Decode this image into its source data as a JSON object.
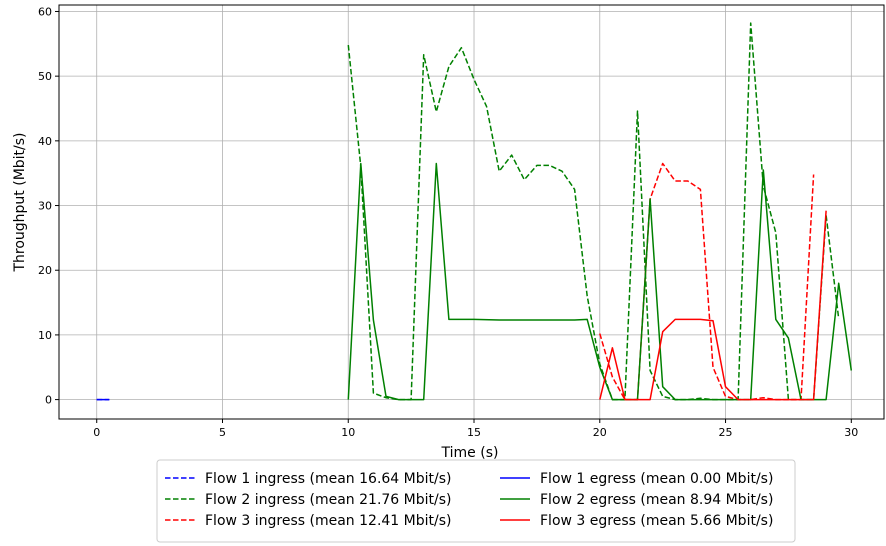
{
  "chart_data": {
    "type": "line",
    "xlabel": "Time (s)",
    "ylabel": "Throughput (Mbit/s)",
    "xlim": [
      -1.5,
      31.3
    ],
    "ylim": [
      -3,
      61
    ],
    "xticks": [
      0,
      5,
      10,
      15,
      20,
      25,
      30
    ],
    "yticks": [
      0,
      10,
      20,
      30,
      40,
      50,
      60
    ],
    "grid": true,
    "legend_position": "bottom",
    "series": [
      {
        "name": "Flow 1 ingress (mean 16.64 Mbit/s)",
        "color": "#0000ff",
        "dash": true,
        "points": [
          [
            0,
            0
          ],
          [
            0.5,
            0
          ]
        ]
      },
      {
        "name": "Flow 2 ingress (mean 21.76 Mbit/s)",
        "color": "#008000",
        "dash": true,
        "points": [
          [
            10,
            54.8
          ],
          [
            10.5,
            36
          ],
          [
            11,
            1
          ],
          [
            11.5,
            0.3
          ],
          [
            12,
            0
          ],
          [
            12.5,
            0
          ],
          [
            13,
            53.3
          ],
          [
            13.5,
            44.5
          ],
          [
            14,
            51.5
          ],
          [
            14.5,
            54.4
          ],
          [
            15,
            49.5
          ],
          [
            15.5,
            45.3
          ],
          [
            16,
            35.3
          ],
          [
            16.5,
            37.8
          ],
          [
            17,
            34
          ],
          [
            17.5,
            36.2
          ],
          [
            18,
            36.2
          ],
          [
            18.5,
            35.3
          ],
          [
            19,
            32.5
          ],
          [
            19.5,
            16
          ],
          [
            20,
            5.5
          ],
          [
            20.5,
            0
          ],
          [
            21,
            0
          ],
          [
            21.5,
            44.6
          ],
          [
            22,
            4.5
          ],
          [
            22.5,
            0.5
          ],
          [
            23,
            0
          ],
          [
            23.5,
            0
          ],
          [
            24,
            0.2
          ],
          [
            24.5,
            0
          ],
          [
            25,
            0
          ],
          [
            25.5,
            0
          ],
          [
            26,
            58.2
          ],
          [
            26.5,
            33
          ],
          [
            27,
            25.8
          ],
          [
            27.5,
            0
          ],
          [
            28,
            0
          ],
          [
            28.5,
            0
          ],
          [
            29,
            28.5
          ],
          [
            29.5,
            12.5
          ]
        ]
      },
      {
        "name": "Flow 3 ingress (mean 12.41 Mbit/s)",
        "color": "#ff0000",
        "dash": true,
        "points": [
          [
            20,
            10.2
          ],
          [
            20.5,
            3.5
          ],
          [
            21,
            0
          ],
          [
            21.5,
            0
          ],
          [
            22,
            31
          ],
          [
            22.5,
            36.5
          ],
          [
            23,
            33.8
          ],
          [
            23.5,
            33.8
          ],
          [
            24,
            32.5
          ],
          [
            24.5,
            5
          ],
          [
            25,
            0.5
          ],
          [
            25.5,
            0
          ],
          [
            26,
            0
          ],
          [
            26.5,
            0.3
          ],
          [
            27,
            0
          ],
          [
            27.5,
            0
          ],
          [
            28,
            0
          ],
          [
            28.5,
            34.8
          ]
        ]
      },
      {
        "name": "Flow 1 egress (mean 0.00 Mbit/s)",
        "color": "#0000ff",
        "dash": false,
        "points": [
          [
            0,
            0
          ],
          [
            0.5,
            0
          ]
        ]
      },
      {
        "name": "Flow 2 egress (mean 8.94 Mbit/s)",
        "color": "#008000",
        "dash": false,
        "points": [
          [
            10,
            0
          ],
          [
            10.5,
            36.5
          ],
          [
            11,
            12.3
          ],
          [
            11.5,
            0.5
          ],
          [
            12,
            0
          ],
          [
            12.5,
            0
          ],
          [
            13,
            0
          ],
          [
            13.5,
            36.5
          ],
          [
            14,
            12.4
          ],
          [
            15,
            12.4
          ],
          [
            16,
            12.3
          ],
          [
            17,
            12.3
          ],
          [
            18,
            12.3
          ],
          [
            19,
            12.3
          ],
          [
            19.5,
            12.4
          ],
          [
            20,
            5
          ],
          [
            20.5,
            0
          ],
          [
            21,
            0
          ],
          [
            21.5,
            0
          ],
          [
            22,
            31
          ],
          [
            22.5,
            2
          ],
          [
            23,
            0
          ],
          [
            24,
            0
          ],
          [
            25,
            0
          ],
          [
            25.5,
            0
          ],
          [
            26,
            0
          ],
          [
            26.5,
            35.5
          ],
          [
            27,
            12.4
          ],
          [
            27.5,
            9.5
          ],
          [
            28,
            0
          ],
          [
            28.5,
            0
          ],
          [
            29,
            0
          ],
          [
            29.5,
            18
          ],
          [
            30,
            4.5
          ]
        ]
      },
      {
        "name": "Flow 3 egress (mean 5.66 Mbit/s)",
        "color": "#ff0000",
        "dash": false,
        "points": [
          [
            20,
            0
          ],
          [
            20.5,
            8
          ],
          [
            21,
            0
          ],
          [
            21.5,
            0
          ],
          [
            22,
            0
          ],
          [
            22.5,
            10.5
          ],
          [
            23,
            12.4
          ],
          [
            23.5,
            12.4
          ],
          [
            24,
            12.4
          ],
          [
            24.5,
            12.2
          ],
          [
            25,
            2
          ],
          [
            25.5,
            0
          ],
          [
            26,
            0
          ],
          [
            26.5,
            0
          ],
          [
            27,
            0
          ],
          [
            27.5,
            0
          ],
          [
            28,
            0
          ],
          [
            28.5,
            0
          ],
          [
            29,
            29.2
          ]
        ]
      }
    ],
    "legend_layout": [
      [
        "Flow 1 ingress (mean 16.64 Mbit/s)",
        "Flow 1 egress (mean 0.00 Mbit/s)"
      ],
      [
        "Flow 2 ingress (mean 21.76 Mbit/s)",
        "Flow 2 egress (mean 8.94 Mbit/s)"
      ],
      [
        "Flow 3 ingress (mean 12.41 Mbit/s)",
        "Flow 3 egress (mean 5.66 Mbit/s)"
      ]
    ]
  }
}
